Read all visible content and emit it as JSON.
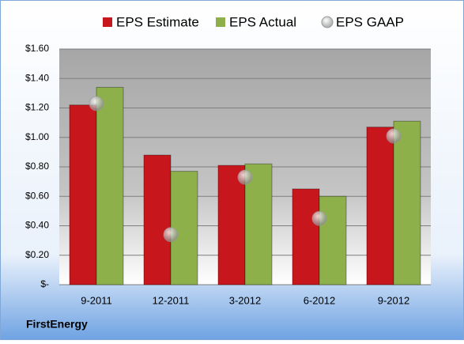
{
  "chart_data": {
    "type": "bar",
    "categories": [
      "9-2011",
      "12-2011",
      "3-2012",
      "6-2012",
      "9-2012"
    ],
    "series": [
      {
        "name": "EPS Estimate",
        "type": "bar",
        "color": "#c8161d",
        "values": [
          1.22,
          0.88,
          0.81,
          0.65,
          1.07
        ]
      },
      {
        "name": "EPS Actual",
        "type": "bar",
        "color": "#8db04a",
        "values": [
          1.34,
          0.77,
          0.82,
          0.6,
          1.11
        ]
      },
      {
        "name": "EPS GAAP",
        "type": "scatter",
        "color": "#9a9a9a",
        "values": [
          1.23,
          0.34,
          0.73,
          0.45,
          1.01
        ]
      }
    ],
    "ylim": [
      0,
      1.6
    ],
    "yticks": [
      {
        "value": 0,
        "label": "$-"
      },
      {
        "value": 0.2,
        "label": "$0.20"
      },
      {
        "value": 0.4,
        "label": "$0.40"
      },
      {
        "value": 0.6,
        "label": "$0.60"
      },
      {
        "value": 0.8,
        "label": "$0.80"
      },
      {
        "value": 1.0,
        "label": "$1.00"
      },
      {
        "value": 1.2,
        "label": "$1.20"
      },
      {
        "value": 1.4,
        "label": "$1.40"
      },
      {
        "value": 1.6,
        "label": "$1.60"
      }
    ],
    "grid": true,
    "legend": "top",
    "footer": "FirstEnergy"
  }
}
